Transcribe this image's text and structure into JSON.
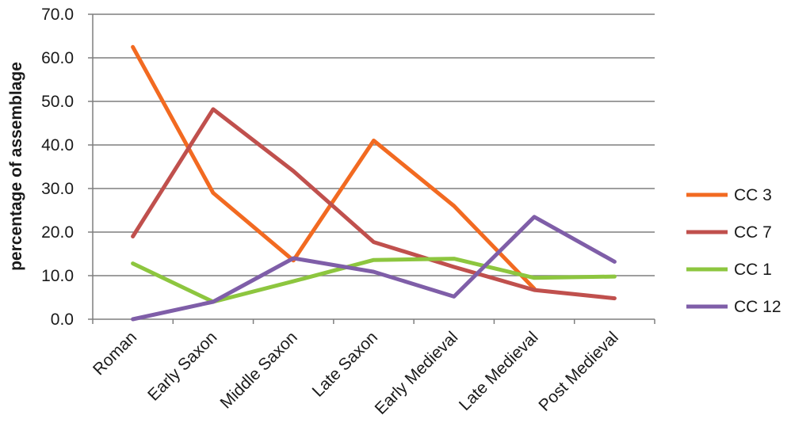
{
  "chart_data": {
    "type": "line",
    "title": "",
    "xlabel": "",
    "ylabel": "percentage of assemblage",
    "ylim": [
      0,
      70
    ],
    "ytick_labels": [
      "0.0",
      "10.0",
      "20.0",
      "30.0",
      "40.0",
      "50.0",
      "60.0",
      "70.0"
    ],
    "grid": true,
    "legend_position": "right",
    "categories": [
      "Roman",
      "Early Saxon",
      "Middle Saxon",
      "Late Saxon",
      "Early Medieval",
      "Late Medieval",
      "Post Medieval"
    ],
    "series": [
      {
        "name": "CC 3",
        "color": "#f26a21",
        "values": [
          62.5,
          29.0,
          13.5,
          41.0,
          26.0,
          7.0,
          null
        ]
      },
      {
        "name": "CC 7",
        "color": "#c0504d",
        "values": [
          19.0,
          48.2,
          34.0,
          17.7,
          12.0,
          6.7,
          4.8
        ]
      },
      {
        "name": "CC 1",
        "color": "#8dc63f",
        "values": [
          12.8,
          4.0,
          8.7,
          13.6,
          13.9,
          9.5,
          9.8
        ]
      },
      {
        "name": "CC 12",
        "color": "#7f5ea8",
        "values": [
          0.0,
          4.0,
          14.0,
          10.9,
          5.2,
          23.5,
          13.2
        ]
      }
    ]
  }
}
